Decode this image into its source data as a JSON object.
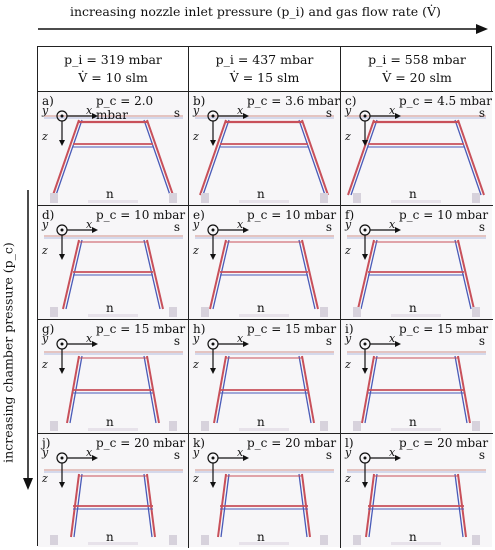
{
  "header": {
    "top_label": "increasing nozzle inlet pressure (p_i) and gas flow rate (V̇)",
    "left_label": "increasing chamber pressure (p_c)"
  },
  "columns": [
    {
      "p_line": "p_i = 319 mbar",
      "v_line": "V̇ = 10 slm"
    },
    {
      "p_line": "p_i = 437 mbar",
      "v_line": "V̇ = 15 slm"
    },
    {
      "p_line": "p_i = 558 mbar",
      "v_line": "V̇ = 20 slm"
    }
  ],
  "panels": [
    {
      "label": "a)",
      "pc": "p_c = 2.0 mbar"
    },
    {
      "label": "b)",
      "pc": "p_c = 3.6 mbar"
    },
    {
      "label": "c)",
      "pc": "p_c = 4.5 mbar"
    },
    {
      "label": "d)",
      "pc": "p_c = 10 mbar"
    },
    {
      "label": "e)",
      "pc": "p_c = 10 mbar"
    },
    {
      "label": "f)",
      "pc": "p_c = 10 mbar"
    },
    {
      "label": "g)",
      "pc": "p_c = 15 mbar"
    },
    {
      "label": "h)",
      "pc": "p_c = 15 mbar"
    },
    {
      "label": "i)",
      "pc": "p_c = 15 mbar"
    },
    {
      "label": "j)",
      "pc": "p_c = 20 mbar"
    },
    {
      "label": "k)",
      "pc": "p_c = 20 mbar"
    },
    {
      "label": "l)",
      "pc": "p_c = 20 mbar"
    }
  ],
  "axis_labels": {
    "x": "x",
    "y": "y",
    "z": "z",
    "s": "s",
    "n": "n"
  }
}
